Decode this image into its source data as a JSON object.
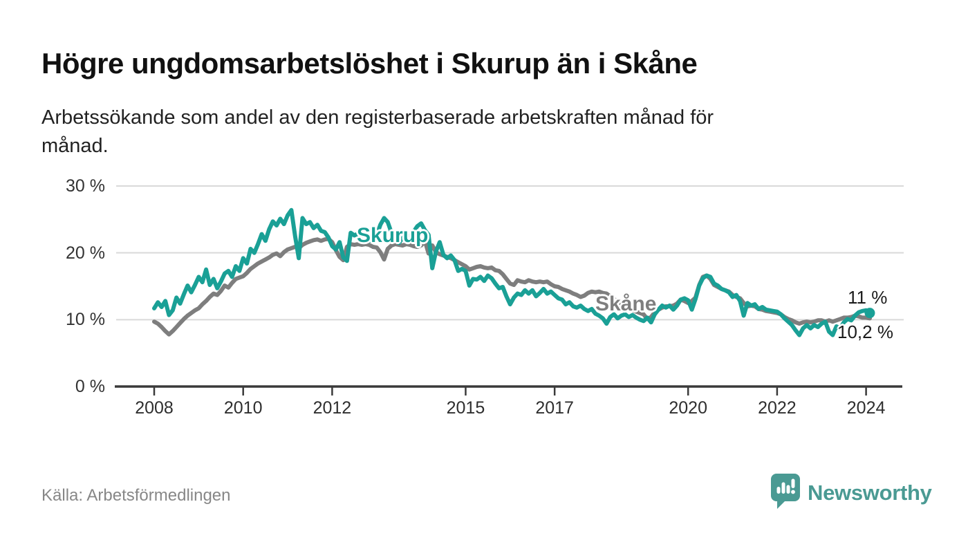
{
  "header": {
    "title": "Högre ungdomsarbetslöshet i Skurup än i Skåne",
    "subtitle_line1": "Arbetssökande som andel av den registerbaserade arbetskraften månad för",
    "subtitle_line2": "månad."
  },
  "footer": {
    "source": "Källa: Arbetsförmedlingen",
    "brand": "Newsworthy",
    "brand_icon": "speech-bubble-bar-chart-icon",
    "brand_color": "#4a9a93"
  },
  "chart_data": {
    "type": "line",
    "title": "Högre ungdomsarbetslöshet i Skurup än i Skåne",
    "unit": "%",
    "grid": true,
    "ylim": [
      0,
      30
    ],
    "x_range_years": [
      2008.0,
      2024.083
    ],
    "x_step_months": 1,
    "y_ticks": [
      {
        "value": 0,
        "label": "0 %"
      },
      {
        "value": 10,
        "label": "10 %"
      },
      {
        "value": 20,
        "label": "20 %"
      },
      {
        "value": 30,
        "label": "30 %"
      }
    ],
    "x_ticks": [
      {
        "value": 2008,
        "label": "2008"
      },
      {
        "value": 2010,
        "label": "2010"
      },
      {
        "value": 2012,
        "label": "2012"
      },
      {
        "value": 2015,
        "label": "2015"
      },
      {
        "value": 2017,
        "label": "2017"
      },
      {
        "value": 2020,
        "label": "2020"
      },
      {
        "value": 2022,
        "label": "2022"
      },
      {
        "value": 2024,
        "label": "2024"
      }
    ],
    "series": [
      {
        "name": "Skurup",
        "color": "#1aa096",
        "end_label": "11 %",
        "end_dot": true,
        "values": [
          11.7,
          12.6,
          11.9,
          12.8,
          10.7,
          11.4,
          13.3,
          12.4,
          13.8,
          15.1,
          14.1,
          15.2,
          16.4,
          15.6,
          17.5,
          15.2,
          16.1,
          14.7,
          15.7,
          16.9,
          17.3,
          16.4,
          18.0,
          17.3,
          19.2,
          18.4,
          20.6,
          20.0,
          21.3,
          22.8,
          21.8,
          23.5,
          24.7,
          24.1,
          25.1,
          24.3,
          25.6,
          26.4,
          22.5,
          19.2,
          25.2,
          24.3,
          24.6,
          23.7,
          24.2,
          23.3,
          23.1,
          22.3,
          21.0,
          20.5,
          21.6,
          19.3,
          18.8,
          23.0,
          22.6,
          22.9,
          22.1,
          22.3,
          21.8,
          22.0,
          22.6,
          24.2,
          25.2,
          24.6,
          23.0,
          21.8,
          21.5,
          22.2,
          22.8,
          22.4,
          23.2,
          24.0,
          24.4,
          23.4,
          22.7,
          17.7,
          20.2,
          21.6,
          19.7,
          19.2,
          19.6,
          18.9,
          17.3,
          17.6,
          17.3,
          15.1,
          16.1,
          16.0,
          16.4,
          15.8,
          16.6,
          16.2,
          15.4,
          14.7,
          14.9,
          13.5,
          12.3,
          13.3,
          13.9,
          13.7,
          14.4,
          13.9,
          14.4,
          13.5,
          14.0,
          14.6,
          13.9,
          14.2,
          13.7,
          13.2,
          13.0,
          12.3,
          12.6,
          12.0,
          11.8,
          12.1,
          11.6,
          11.3,
          11.6,
          10.9,
          10.6,
          10.2,
          9.4,
          10.4,
          10.8,
          10.2,
          10.6,
          10.8,
          10.4,
          10.7,
          10.3,
          10.0,
          9.8,
          10.3,
          9.6,
          10.8,
          11.5,
          12.1,
          11.8,
          12.1,
          11.5,
          12.1,
          13.0,
          13.2,
          12.9,
          11.5,
          13.1,
          15.1,
          16.2,
          16.6,
          16.4,
          15.4,
          15.1,
          14.6,
          14.4,
          14.1,
          13.4,
          13.7,
          12.8,
          10.6,
          12.5,
          12.1,
          12.3,
          11.6,
          11.9,
          11.5,
          11.4,
          11.3,
          11.2,
          10.8,
          10.2,
          9.7,
          9.2,
          8.4,
          7.7,
          8.7,
          9.2,
          8.7,
          9.2,
          8.9,
          9.4,
          9.7,
          8.2,
          7.7,
          9.0,
          8.7,
          9.6,
          10.1,
          9.9,
          10.6,
          11.1,
          11.3,
          11.4,
          11.0
        ]
      },
      {
        "name": "Skåne",
        "color": "#7e7e7e",
        "end_label": "10,2 %",
        "end_dot": false,
        "values": [
          9.7,
          9.4,
          8.9,
          8.3,
          7.8,
          8.3,
          8.9,
          9.5,
          10.1,
          10.6,
          11.0,
          11.4,
          11.7,
          12.3,
          12.8,
          13.4,
          13.9,
          13.7,
          14.3,
          15.1,
          14.8,
          15.5,
          16.1,
          16.3,
          16.5,
          17.0,
          17.6,
          18.0,
          18.4,
          18.7,
          19.0,
          19.3,
          19.7,
          19.9,
          19.5,
          20.1,
          20.5,
          20.7,
          20.9,
          20.7,
          21.2,
          21.5,
          21.7,
          21.9,
          22.0,
          21.8,
          22.0,
          22.1,
          21.6,
          20.4,
          19.4,
          18.9,
          20.9,
          21.3,
          21.2,
          21.3,
          21.2,
          21.3,
          21.2,
          20.9,
          20.8,
          20.1,
          19.0,
          20.6,
          21.1,
          21.3,
          21.2,
          21.1,
          21.3,
          21.2,
          21.0,
          20.9,
          21.1,
          21.8,
          19.9,
          21.1,
          20.1,
          19.8,
          19.6,
          19.4,
          19.2,
          18.9,
          18.6,
          18.3,
          18.0,
          17.5,
          17.7,
          17.9,
          18.0,
          17.8,
          17.7,
          17.8,
          17.4,
          17.3,
          16.8,
          16.1,
          15.4,
          15.2,
          15.9,
          15.7,
          15.6,
          15.9,
          15.7,
          15.6,
          15.7,
          15.6,
          15.7,
          15.3,
          15.0,
          14.9,
          14.6,
          14.4,
          14.2,
          13.9,
          13.7,
          13.4,
          13.6,
          14.0,
          14.2,
          14.1,
          14.2,
          14.0,
          13.9,
          13.5,
          13.1,
          12.7,
          12.4,
          12.1,
          11.8,
          11.5,
          11.2,
          11.0,
          10.8,
          10.1,
          10.4,
          11.1,
          11.5,
          11.8,
          12.0,
          12.0,
          12.1,
          12.4,
          13.0,
          12.8,
          12.5,
          12.8,
          13.3,
          15.2,
          16.4,
          16.6,
          16.1,
          15.2,
          14.9,
          14.6,
          14.4,
          14.2,
          13.7,
          13.4,
          13.2,
          12.5,
          12.0,
          12.1,
          12.0,
          11.6,
          11.5,
          11.3,
          11.2,
          11.1,
          11.0,
          10.8,
          10.4,
          10.1,
          9.9,
          9.6,
          9.4,
          9.6,
          9.7,
          9.6,
          9.7,
          9.9,
          9.9,
          9.7,
          9.9,
          9.7,
          9.9,
          10.1,
          10.3,
          10.3,
          10.4,
          10.6,
          10.5,
          10.3,
          10.3,
          10.2
        ]
      }
    ]
  }
}
